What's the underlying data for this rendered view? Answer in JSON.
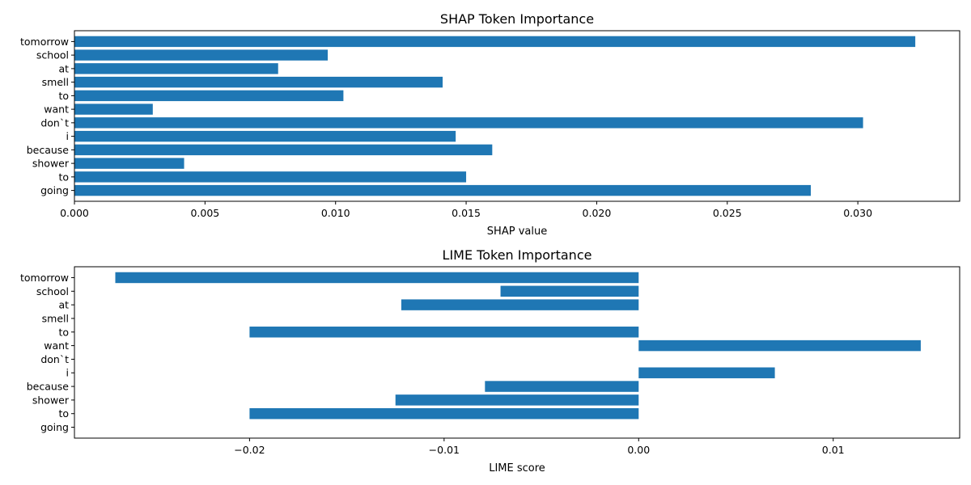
{
  "chart_data": [
    {
      "type": "bar",
      "orientation": "horizontal",
      "title": "SHAP Token Importance",
      "xlabel": "SHAP value",
      "ylabel": "",
      "categories": [
        "tomorrow",
        "school",
        "at",
        "smell",
        "to",
        "want",
        "don`t",
        "i",
        "because",
        "shower",
        "to",
        "going"
      ],
      "values": [
        0.0322,
        0.0097,
        0.0078,
        0.0141,
        0.0103,
        0.003,
        0.0302,
        0.0146,
        0.016,
        0.0042,
        0.015,
        0.0282
      ],
      "xlim": [
        0,
        0.0339
      ],
      "xticks": [
        0,
        0.005,
        0.01,
        0.015,
        0.02,
        0.025,
        0.03
      ],
      "xtick_labels": [
        "0.000",
        "0.005",
        "0.010",
        "0.015",
        "0.020",
        "0.025",
        "0.030"
      ],
      "bar_color": "#1f77b4",
      "grid": false,
      "legend": "none"
    },
    {
      "type": "bar",
      "orientation": "horizontal",
      "title": "LIME Token Importance",
      "xlabel": "LIME score",
      "ylabel": "",
      "categories": [
        "tomorrow",
        "school",
        "at",
        "smell",
        "to",
        "want",
        "don`t",
        "i",
        "because",
        "shower",
        "to",
        "going"
      ],
      "values": [
        -0.0269,
        -0.0071,
        -0.0122,
        0.0,
        -0.02,
        0.0145,
        0.0,
        0.007,
        -0.0079,
        -0.0125,
        -0.02,
        0.0
      ],
      "xlim": [
        -0.029,
        0.0165
      ],
      "xticks": [
        -0.02,
        -0.01,
        0.0,
        0.01
      ],
      "xtick_labels": [
        "−0.02",
        "−0.01",
        "0.00",
        "0.01"
      ],
      "bar_color": "#1f77b4",
      "grid": false,
      "legend": "none"
    }
  ]
}
